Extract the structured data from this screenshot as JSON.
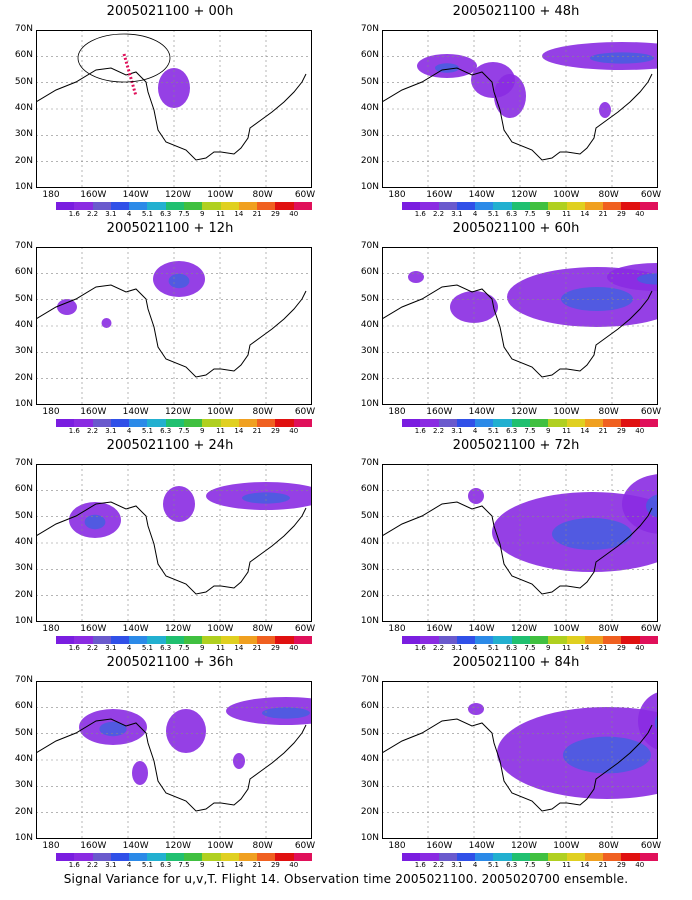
{
  "footer_caption": "Signal Variance for u,v,T. Flight 14. Observation time 2005021100. 2005020700 ensemble.",
  "lat_labels": [
    "70N",
    "60N",
    "50N",
    "40N",
    "30N",
    "20N",
    "10N"
  ],
  "lon_labels": [
    "180",
    "160W",
    "140W",
    "120W",
    "100W",
    "80W",
    "60W"
  ],
  "colorbar_labels": [
    "1.6",
    "2.2",
    "3.1",
    "4",
    "5.1",
    "6.3",
    "7.5",
    "9",
    "11",
    "14",
    "21",
    "29",
    "40"
  ],
  "colorbar_colors": [
    "#7a1de0",
    "#8a2be2",
    "#6a5acd",
    "#3050e8",
    "#2b8ae8",
    "#22b0d0",
    "#20c070",
    "#40c040",
    "#b0d020",
    "#e0d020",
    "#f0a020",
    "#f06020",
    "#e01010",
    "#e0105a"
  ],
  "panels": [
    {
      "id": "p00",
      "title": "2005021100 + 00h"
    },
    {
      "id": "p48",
      "title": "2005021100 + 48h"
    },
    {
      "id": "p12",
      "title": "2005021100 + 12h"
    },
    {
      "id": "p60",
      "title": "2005021100 + 60h"
    },
    {
      "id": "p24",
      "title": "2005021100 + 24h"
    },
    {
      "id": "p72",
      "title": "2005021100 + 72h"
    },
    {
      "id": "p36",
      "title": "2005021100 + 36h"
    },
    {
      "id": "p84",
      "title": "2005021100 + 84h"
    }
  ]
}
